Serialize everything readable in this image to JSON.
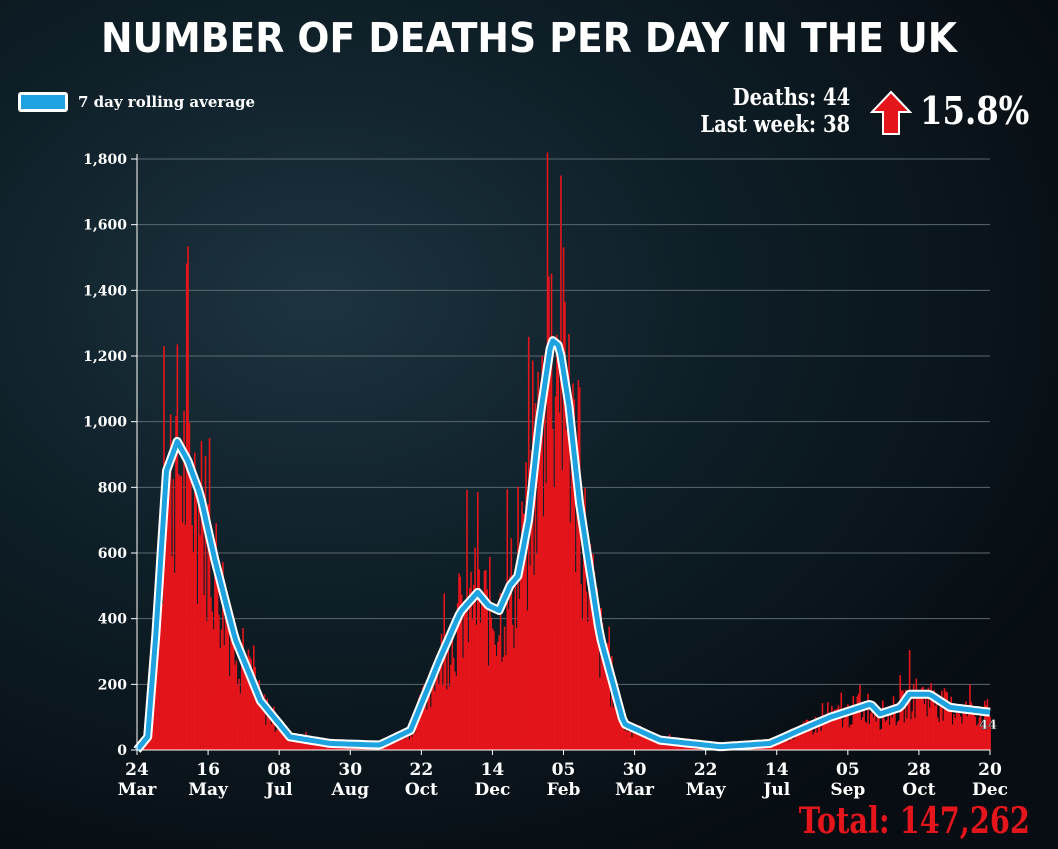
{
  "title": "NUMBER OF DEATHS PER DAY IN THE UK",
  "legend_label": "7 day rolling average",
  "stats": {
    "deaths": "Deaths: 44",
    "last_week": "Last week: 38",
    "change": "15.8%",
    "change_direction": "up",
    "latest_label": "44"
  },
  "total": "Total: 147,262",
  "colors": {
    "bars": "#e4151b",
    "line": "#1ea3e0",
    "line_outline": "#ffffff",
    "arrow": "#e4151b"
  },
  "chart_data": {
    "type": "bar",
    "title": "NUMBER OF DEATHS PER DAY IN THE UK",
    "xlabel": "",
    "ylabel": "",
    "ylim": [
      0,
      1800
    ],
    "yticks": [
      "0",
      "200",
      "400",
      "600",
      "800",
      "1,000",
      "1,200",
      "1,400",
      "1,600",
      "1,800"
    ],
    "ytick_values": [
      0,
      200,
      400,
      600,
      800,
      1000,
      1200,
      1400,
      1600,
      1800
    ],
    "xticks": [
      [
        "24",
        "Mar"
      ],
      [
        "16",
        "May"
      ],
      [
        "08",
        "Jul"
      ],
      [
        "30",
        "Aug"
      ],
      [
        "22",
        "Oct"
      ],
      [
        "14",
        "Dec"
      ],
      [
        "05",
        "Feb"
      ],
      [
        "30",
        "Mar"
      ],
      [
        "22",
        "May"
      ],
      [
        "14",
        "Jul"
      ],
      [
        "05",
        "Sep"
      ],
      [
        "28",
        "Oct"
      ],
      [
        "20",
        "Dec"
      ]
    ],
    "x_day_range": [
      0,
      636
    ],
    "grid": true,
    "series": [
      {
        "name": "Daily deaths",
        "type": "bar",
        "note": "daily values fluctuate around rolling average; peaks ~1,230 (Apr 2020) and ~1,820 (Jan 2021)",
        "peaks": [
          [
            20,
            1230
          ],
          [
            306,
            1820
          ]
        ]
      },
      {
        "name": "7 day rolling average",
        "type": "line",
        "points_day_value": [
          [
            0,
            0
          ],
          [
            8,
            40
          ],
          [
            14,
            350
          ],
          [
            22,
            850
          ],
          [
            30,
            940
          ],
          [
            38,
            880
          ],
          [
            47,
            780
          ],
          [
            58,
            580
          ],
          [
            73,
            340
          ],
          [
            92,
            150
          ],
          [
            114,
            40
          ],
          [
            144,
            20
          ],
          [
            181,
            15
          ],
          [
            204,
            60
          ],
          [
            226,
            280
          ],
          [
            241,
            420
          ],
          [
            254,
            480
          ],
          [
            262,
            440
          ],
          [
            270,
            425
          ],
          [
            278,
            500
          ],
          [
            284,
            530
          ],
          [
            292,
            700
          ],
          [
            300,
            1000
          ],
          [
            309,
            1250
          ],
          [
            315,
            1230
          ],
          [
            322,
            1050
          ],
          [
            330,
            750
          ],
          [
            345,
            350
          ],
          [
            363,
            80
          ],
          [
            390,
            30
          ],
          [
            435,
            10
          ],
          [
            472,
            20
          ],
          [
            494,
            60
          ],
          [
            517,
            100
          ],
          [
            532,
            120
          ],
          [
            547,
            140
          ],
          [
            554,
            110
          ],
          [
            569,
            130
          ],
          [
            576,
            170
          ],
          [
            591,
            170
          ],
          [
            606,
            130
          ],
          [
            636,
            115
          ]
        ]
      }
    ]
  }
}
